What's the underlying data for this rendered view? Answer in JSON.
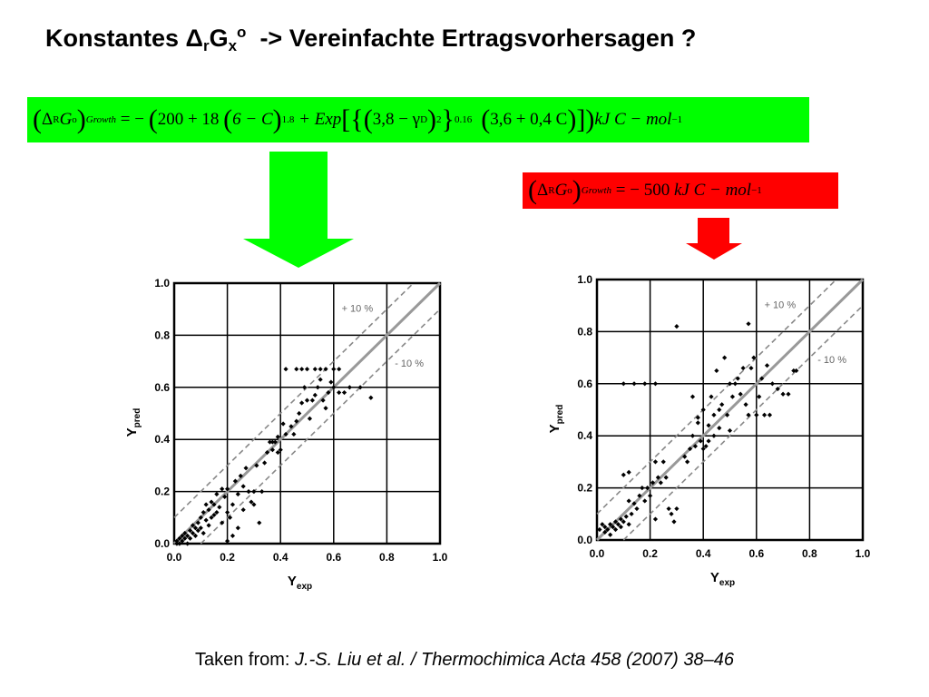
{
  "title": {
    "prefix": "Konstantes Δ",
    "sub_r": "r",
    "g": "G",
    "sub_x": "x",
    "sup_o": "o",
    "suffix": "  -> Vereinfachte Ertragsvorhersagen ?"
  },
  "formula_green": {
    "color": "#00ff00",
    "delta": "Δ",
    "sub_R": "R",
    "G": "G",
    "sup_o": "o",
    "sub_growth": "Growth",
    "eq": " = − ",
    "t200": "200 + 18 ",
    "t6c": "6 − C",
    "sup18": "1.8",
    "plus_exp": " + Exp",
    "t38": "3,8 − γ",
    "sub_D": "D",
    "sup2": "2",
    "sup016": "0.16",
    "t36": "3,6 + 0,4 C",
    "unit": "kJ C − mol",
    "sup_m1": "−1"
  },
  "formula_red": {
    "color": "#ff0000",
    "delta": "Δ",
    "sub_R": "R",
    "G": "G",
    "sup_o": "o",
    "sub_growth": "Growth",
    "eq": " = − 500 ",
    "unit": "kJ C − mol",
    "sup_m1": "−1"
  },
  "arrows": {
    "green": "#00ff00",
    "red": "#ff0000"
  },
  "chart_data": [
    {
      "type": "scatter",
      "xlabel_main": "Y",
      "xlabel_sub": "exp",
      "ylabel_main": "Y",
      "ylabel_sub": "pred",
      "xlim": [
        0,
        1
      ],
      "ylim": [
        0,
        1
      ],
      "ticks": [
        "0.0",
        "0.2",
        "0.4",
        "0.6",
        "0.8",
        "1.0"
      ],
      "grid": true,
      "annotations": [
        "+ 10 %",
        "- 10 %"
      ],
      "points": [
        [
          0.01,
          0.0
        ],
        [
          0.01,
          0.01
        ],
        [
          0.02,
          0.02
        ],
        [
          0.02,
          0.0
        ],
        [
          0.03,
          0.01
        ],
        [
          0.03,
          0.03
        ],
        [
          0.04,
          0.02
        ],
        [
          0.04,
          0.04
        ],
        [
          0.05,
          0.03
        ],
        [
          0.05,
          0.0
        ],
        [
          0.06,
          0.05
        ],
        [
          0.06,
          0.02
        ],
        [
          0.07,
          0.04
        ],
        [
          0.07,
          0.07
        ],
        [
          0.08,
          0.06
        ],
        [
          0.08,
          0.03
        ],
        [
          0.09,
          0.08
        ],
        [
          0.09,
          0.05
        ],
        [
          0.1,
          0.1
        ],
        [
          0.1,
          0.06
        ],
        [
          0.11,
          0.12
        ],
        [
          0.11,
          0.04
        ],
        [
          0.12,
          0.15
        ],
        [
          0.12,
          0.09
        ],
        [
          0.13,
          0.13
        ],
        [
          0.13,
          0.07
        ],
        [
          0.14,
          0.16
        ],
        [
          0.14,
          0.1
        ],
        [
          0.15,
          0.15
        ],
        [
          0.15,
          0.11
        ],
        [
          0.16,
          0.19
        ],
        [
          0.16,
          0.12
        ],
        [
          0.17,
          0.14
        ],
        [
          0.18,
          0.21
        ],
        [
          0.18,
          0.08
        ],
        [
          0.19,
          0.18
        ],
        [
          0.2,
          0.21
        ],
        [
          0.2,
          0.12
        ],
        [
          0.21,
          0.1
        ],
        [
          0.22,
          0.15
        ],
        [
          0.23,
          0.24
        ],
        [
          0.24,
          0.19
        ],
        [
          0.25,
          0.26
        ],
        [
          0.26,
          0.22
        ],
        [
          0.27,
          0.29
        ],
        [
          0.28,
          0.2
        ],
        [
          0.29,
          0.16
        ],
        [
          0.3,
          0.2
        ],
        [
          0.31,
          0.3
        ],
        [
          0.32,
          0.08
        ],
        [
          0.33,
          0.2
        ],
        [
          0.34,
          0.31
        ],
        [
          0.35,
          0.35
        ],
        [
          0.36,
          0.39
        ],
        [
          0.37,
          0.36
        ],
        [
          0.38,
          0.39
        ],
        [
          0.39,
          0.41
        ],
        [
          0.4,
          0.36
        ],
        [
          0.41,
          0.46
        ],
        [
          0.42,
          0.42
        ],
        [
          0.42,
          0.67
        ],
        [
          0.44,
          0.45
        ],
        [
          0.45,
          0.42
        ],
        [
          0.46,
          0.47
        ],
        [
          0.47,
          0.5
        ],
        [
          0.48,
          0.54
        ],
        [
          0.49,
          0.6
        ],
        [
          0.5,
          0.55
        ],
        [
          0.5,
          0.67
        ],
        [
          0.51,
          0.48
        ],
        [
          0.52,
          0.55
        ],
        [
          0.53,
          0.57
        ],
        [
          0.54,
          0.6
        ],
        [
          0.55,
          0.63
        ],
        [
          0.55,
          0.67
        ],
        [
          0.56,
          0.55
        ],
        [
          0.57,
          0.52
        ],
        [
          0.58,
          0.58
        ],
        [
          0.59,
          0.62
        ],
        [
          0.6,
          0.6
        ],
        [
          0.6,
          0.67
        ],
        [
          0.62,
          0.58
        ],
        [
          0.62,
          0.67
        ],
        [
          0.64,
          0.58
        ],
        [
          0.66,
          0.6
        ],
        [
          0.7,
          0.6
        ],
        [
          0.74,
          0.56
        ],
        [
          0.46,
          0.67
        ],
        [
          0.48,
          0.67
        ],
        [
          0.53,
          0.67
        ],
        [
          0.57,
          0.67
        ],
        [
          0.37,
          0.39
        ],
        [
          0.39,
          0.35
        ],
        [
          0.3,
          0.15
        ],
        [
          0.26,
          0.13
        ],
        [
          0.24,
          0.06
        ],
        [
          0.22,
          0.03
        ],
        [
          0.2,
          0.01
        ]
      ]
    },
    {
      "type": "scatter",
      "xlabel_main": "Y",
      "xlabel_sub": "exp",
      "ylabel_main": "Y",
      "ylabel_sub": "pred",
      "xlim": [
        0,
        1
      ],
      "ylim": [
        0,
        1
      ],
      "ticks": [
        "0.0",
        "0.2",
        "0.4",
        "0.6",
        "0.8",
        "1.0"
      ],
      "grid": true,
      "annotations": [
        "+ 10 %",
        "- 10 %"
      ],
      "points": [
        [
          0.01,
          0.04
        ],
        [
          0.02,
          0.06
        ],
        [
          0.03,
          0.03
        ],
        [
          0.03,
          0.05
        ],
        [
          0.04,
          0.04
        ],
        [
          0.05,
          0.06
        ],
        [
          0.05,
          0.02
        ],
        [
          0.06,
          0.05
        ],
        [
          0.07,
          0.07
        ],
        [
          0.07,
          0.04
        ],
        [
          0.08,
          0.06
        ],
        [
          0.09,
          0.08
        ],
        [
          0.09,
          0.05
        ],
        [
          0.1,
          0.07
        ],
        [
          0.11,
          0.09
        ],
        [
          0.12,
          0.06
        ],
        [
          0.12,
          0.15
        ],
        [
          0.13,
          0.1
        ],
        [
          0.14,
          0.14
        ],
        [
          0.15,
          0.12
        ],
        [
          0.16,
          0.17
        ],
        [
          0.17,
          0.2
        ],
        [
          0.18,
          0.15
        ],
        [
          0.19,
          0.2
        ],
        [
          0.2,
          0.17
        ],
        [
          0.21,
          0.22
        ],
        [
          0.22,
          0.3
        ],
        [
          0.22,
          0.08
        ],
        [
          0.23,
          0.24
        ],
        [
          0.24,
          0.22
        ],
        [
          0.25,
          0.3
        ],
        [
          0.26,
          0.24
        ],
        [
          0.27,
          0.12
        ],
        [
          0.28,
          0.1
        ],
        [
          0.29,
          0.07
        ],
        [
          0.3,
          0.12
        ],
        [
          0.3,
          0.82
        ],
        [
          0.1,
          0.25
        ],
        [
          0.12,
          0.26
        ],
        [
          0.1,
          0.6
        ],
        [
          0.14,
          0.6
        ],
        [
          0.18,
          0.6
        ],
        [
          0.22,
          0.6
        ],
        [
          0.33,
          0.32
        ],
        [
          0.35,
          0.35
        ],
        [
          0.36,
          0.4
        ],
        [
          0.37,
          0.36
        ],
        [
          0.38,
          0.45
        ],
        [
          0.39,
          0.38
        ],
        [
          0.4,
          0.5
        ],
        [
          0.41,
          0.36
        ],
        [
          0.42,
          0.44
        ],
        [
          0.43,
          0.55
        ],
        [
          0.44,
          0.48
        ],
        [
          0.45,
          0.65
        ],
        [
          0.46,
          0.5
        ],
        [
          0.47,
          0.52
        ],
        [
          0.48,
          0.7
        ],
        [
          0.49,
          0.48
        ],
        [
          0.5,
          0.6
        ],
        [
          0.5,
          0.42
        ],
        [
          0.51,
          0.55
        ],
        [
          0.52,
          0.6
        ],
        [
          0.53,
          0.62
        ],
        [
          0.54,
          0.56
        ],
        [
          0.55,
          0.66
        ],
        [
          0.56,
          0.52
        ],
        [
          0.57,
          0.83
        ],
        [
          0.57,
          0.48
        ],
        [
          0.58,
          0.66
        ],
        [
          0.59,
          0.7
        ],
        [
          0.6,
          0.48
        ],
        [
          0.61,
          0.55
        ],
        [
          0.62,
          0.62
        ],
        [
          0.63,
          0.48
        ],
        [
          0.64,
          0.67
        ],
        [
          0.65,
          0.48
        ],
        [
          0.66,
          0.6
        ],
        [
          0.68,
          0.58
        ],
        [
          0.7,
          0.56
        ],
        [
          0.72,
          0.56
        ],
        [
          0.74,
          0.65
        ],
        [
          0.75,
          0.65
        ],
        [
          0.36,
          0.55
        ],
        [
          0.38,
          0.47
        ],
        [
          0.4,
          0.35
        ],
        [
          0.42,
          0.38
        ],
        [
          0.44,
          0.4
        ],
        [
          0.46,
          0.43
        ],
        [
          0.34,
          0.3
        ]
      ]
    }
  ],
  "caption": {
    "prefix": "Taken from: ",
    "reference": "J.-S. Liu et al. / Thermochimica Acta 458 (2007) 38–46"
  }
}
